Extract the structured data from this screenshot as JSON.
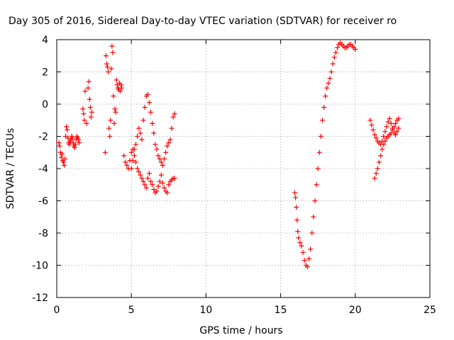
{
  "chart_data": {
    "type": "scatter",
    "title": "Day 305 of 2016, Sidereal Day-to-day VTEC variation (SDTVAR) for receiver ro",
    "xlabel": "GPS time / hours",
    "ylabel": "SDTVAR / TECUs",
    "xlim": [
      0,
      25
    ],
    "ylim": [
      -12,
      4
    ],
    "xticks": [
      0,
      5,
      10,
      15,
      20,
      25
    ],
    "yticks": [
      -12,
      -10,
      -8,
      -6,
      -4,
      -2,
      0,
      2,
      4
    ],
    "grid": true,
    "marker": "+",
    "marker_color": "#ff0000",
    "series": [
      {
        "name": "SDTVAR",
        "x": [
          0.15,
          0.2,
          0.25,
          0.3,
          0.35,
          0.4,
          0.45,
          0.5,
          0.55,
          0.6,
          0.65,
          0.7,
          0.75,
          0.8,
          0.85,
          0.9,
          0.95,
          1.0,
          1.05,
          1.1,
          1.15,
          1.2,
          1.25,
          1.3,
          1.35,
          1.4,
          1.45,
          1.5,
          1.75,
          1.8,
          1.85,
          1.9,
          2.0,
          2.1,
          2.15,
          2.2,
          2.25,
          2.3,
          2.35,
          3.25,
          3.3,
          3.35,
          3.4,
          3.45,
          3.5,
          3.55,
          3.6,
          3.65,
          3.7,
          3.75,
          3.8,
          3.85,
          3.9,
          3.95,
          4.0,
          4.05,
          4.1,
          4.15,
          4.2,
          4.25,
          4.3,
          4.35,
          4.5,
          4.6,
          4.7,
          4.8,
          4.9,
          5.0,
          5.1,
          5.2,
          5.3,
          5.4,
          5.5,
          5.6,
          5.7,
          5.8,
          5.9,
          6.0,
          6.1,
          6.2,
          6.3,
          6.4,
          6.5,
          6.6,
          6.7,
          6.8,
          6.9,
          7.0,
          7.1,
          7.2,
          7.3,
          7.4,
          7.5,
          7.6,
          7.7,
          7.8,
          7.9,
          5.0,
          5.1,
          5.2,
          5.3,
          5.4,
          5.5,
          5.6,
          5.7,
          5.8,
          5.9,
          6.0,
          6.1,
          6.2,
          6.3,
          6.4,
          6.5,
          6.6,
          6.7,
          6.8,
          6.9,
          7.0,
          7.1,
          7.2,
          7.3,
          7.4,
          7.5,
          7.6,
          7.7,
          7.8,
          7.9,
          15.95,
          16.0,
          16.05,
          16.1,
          16.15,
          16.2,
          16.3,
          16.4,
          16.5,
          16.6,
          16.7,
          16.8,
          16.9,
          17.0,
          17.1,
          17.2,
          17.3,
          17.4,
          17.5,
          17.6,
          17.7,
          17.8,
          17.9,
          18.0,
          18.1,
          18.2,
          18.3,
          18.4,
          18.5,
          18.6,
          18.7,
          18.8,
          18.9,
          19.0,
          19.1,
          19.2,
          19.3,
          19.4,
          19.5,
          19.6,
          19.7,
          19.8,
          19.9,
          20.0,
          21.0,
          21.1,
          21.2,
          21.3,
          21.4,
          21.5,
          21.6,
          21.7,
          21.8,
          21.9,
          22.0,
          22.1,
          22.2,
          22.3,
          22.4,
          22.5,
          22.6,
          22.7,
          22.8,
          22.9,
          21.3,
          21.4,
          21.5,
          21.6,
          21.7,
          21.8,
          21.9,
          22.0,
          22.1,
          22.2,
          22.3,
          22.4,
          22.5,
          22.6,
          22.7,
          22.8,
          22.9
        ],
        "y": [
          -2.4,
          -2.6,
          -3.0,
          -3.3,
          -3.1,
          -3.5,
          -3.6,
          -3.8,
          -3.4,
          -2.0,
          -1.4,
          -1.6,
          -2.1,
          -2.4,
          -2.5,
          -2.3,
          -2.2,
          -2.0,
          -2.1,
          -2.4,
          -2.6,
          -2.7,
          -2.5,
          -2.2,
          -2.0,
          -2.1,
          -2.2,
          -2.4,
          -0.3,
          -0.6,
          -1.0,
          0.8,
          -1.2,
          1.0,
          1.4,
          0.3,
          -0.2,
          -0.8,
          -0.5,
          -3.0,
          3.0,
          2.5,
          2.3,
          2.0,
          -1.5,
          -2.0,
          -1.0,
          2.2,
          3.6,
          3.2,
          0.5,
          -1.2,
          -0.3,
          -0.5,
          1.5,
          1.2,
          1.0,
          0.9,
          1.3,
          0.8,
          1.2,
          1.0,
          -3.2,
          -3.6,
          -3.8,
          -4.0,
          -3.5,
          -3.0,
          -2.8,
          -3.2,
          -3.6,
          -4.0,
          -4.2,
          -4.4,
          -4.6,
          -4.8,
          -5.0,
          -5.2,
          -4.6,
          -4.3,
          -4.8,
          -5.0,
          -5.3,
          -5.5,
          -5.4,
          -5.1,
          -4.8,
          -4.4,
          -4.9,
          -5.2,
          -5.4,
          -5.5,
          -5.0,
          -4.8,
          -4.7,
          -4.6,
          -4.6,
          -4.0,
          -3.5,
          -2.8,
          -2.5,
          -2.0,
          -1.5,
          -1.8,
          -2.2,
          -1.0,
          -0.2,
          0.5,
          0.6,
          0.1,
          -0.5,
          -1.2,
          -1.8,
          -2.5,
          -2.8,
          -3.2,
          -3.4,
          -3.6,
          -3.8,
          -3.4,
          -3.0,
          -2.6,
          -2.4,
          -2.2,
          -1.5,
          -0.8,
          -0.6,
          -5.5,
          -5.8,
          -6.4,
          -7.2,
          -7.9,
          -8.3,
          -8.6,
          -8.8,
          -9.2,
          -9.7,
          -10.0,
          -10.1,
          -9.6,
          -9.0,
          -8.0,
          -7.0,
          -6.0,
          -5.0,
          -4.0,
          -3.0,
          -2.0,
          -1.0,
          -0.2,
          0.5,
          1.0,
          1.3,
          1.6,
          2.0,
          2.5,
          2.9,
          3.2,
          3.5,
          3.7,
          3.8,
          3.7,
          3.6,
          3.5,
          3.5,
          3.6,
          3.7,
          3.7,
          3.6,
          3.5,
          3.4,
          -1.0,
          -1.3,
          -1.6,
          -1.9,
          -2.1,
          -2.3,
          -2.4,
          -2.5,
          -2.3,
          -2.0,
          -1.7,
          -1.4,
          -1.1,
          -0.9,
          -1.2,
          -1.5,
          -1.8,
          -1.9,
          -1.7,
          -1.5,
          -4.6,
          -4.3,
          -4.0,
          -3.6,
          -3.2,
          -2.8,
          -2.5,
          -2.3,
          -2.1,
          -2.0,
          -1.9,
          -1.8,
          -1.6,
          -1.4,
          -1.2,
          -1.0,
          -0.9
        ]
      }
    ]
  }
}
